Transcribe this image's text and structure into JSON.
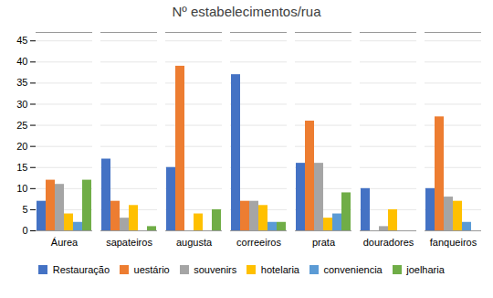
{
  "chart_data": {
    "type": "bar",
    "title": "Nº estabelecimentos/rua",
    "categories": [
      "Áurea",
      "sapateiros",
      "augusta",
      "correeiros",
      "prata",
      "douradores",
      "fanqueiros"
    ],
    "series": [
      {
        "name": "Restauração",
        "color": "#4472c4",
        "values": [
          7,
          17,
          15,
          37,
          16,
          10,
          10
        ]
      },
      {
        "name": "uestário",
        "color": "#ed7d31",
        "values": [
          12,
          7,
          39,
          7,
          26,
          0,
          27
        ]
      },
      {
        "name": "souvenirs",
        "color": "#a5a5a5",
        "values": [
          11,
          3,
          0,
          7,
          16,
          1,
          8
        ]
      },
      {
        "name": "hotelaria",
        "color": "#ffc000",
        "values": [
          4,
          6,
          4,
          6,
          3,
          5,
          7
        ]
      },
      {
        "name": "conveniencia",
        "color": "#5b9bd5",
        "values": [
          2,
          0,
          0,
          2,
          4,
          0,
          2
        ]
      },
      {
        "name": "joelharia",
        "color": "#70ad47",
        "values": [
          12,
          1,
          5,
          2,
          9,
          0,
          0
        ]
      }
    ],
    "ylim": [
      0,
      47
    ],
    "yticks": [
      0,
      5,
      10,
      15,
      20,
      25,
      30,
      35,
      40,
      45
    ],
    "grid": true,
    "legend": "bottom"
  }
}
